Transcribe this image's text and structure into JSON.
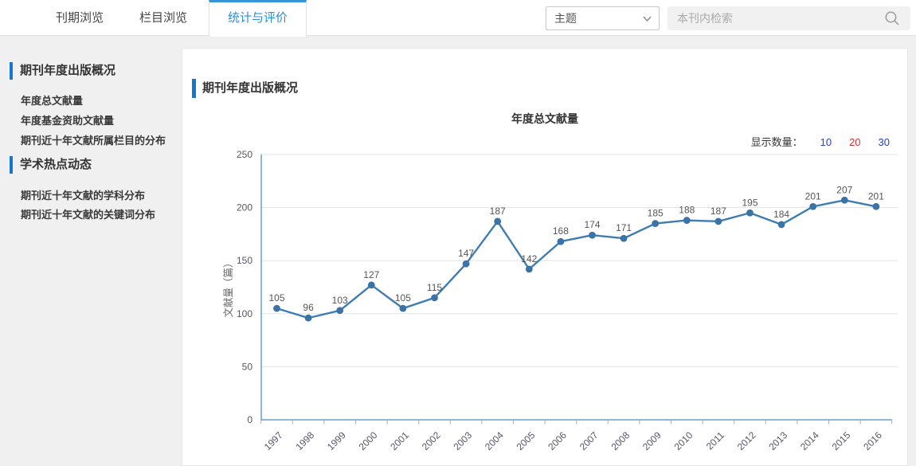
{
  "topbar": {
    "tabs": [
      {
        "label": "刊期浏览",
        "active": false
      },
      {
        "label": "栏目浏览",
        "active": false
      },
      {
        "label": "统计与评价",
        "active": true
      }
    ],
    "search_select": {
      "value": "主题"
    },
    "search_input": {
      "placeholder": "本刊内检索"
    }
  },
  "sidebar": {
    "sections": [
      {
        "title": "期刊年度出版概况",
        "items": [
          "年度总文献量",
          "年度基金资助文献量",
          "期刊近十年文献所属栏目的分布"
        ]
      },
      {
        "title": "学术热点动态",
        "items": [
          "期刊近十年文献的学科分布",
          "期刊近十年文献的关键词分布"
        ]
      }
    ]
  },
  "main": {
    "section_title": "期刊年度出版概况",
    "display_count": {
      "label": "显示数量：",
      "options": [
        {
          "value": "10",
          "selected": false
        },
        {
          "value": "20",
          "selected": true
        },
        {
          "value": "30",
          "selected": false
        }
      ]
    }
  },
  "chart_data": {
    "type": "line",
    "title": "年度总文献量",
    "ylabel": "文献量（篇）",
    "x": [
      "1997",
      "1998",
      "1999",
      "2000",
      "2001",
      "2002",
      "2003",
      "2004",
      "2005",
      "2006",
      "2007",
      "2008",
      "2009",
      "2010",
      "2011",
      "2012",
      "2013",
      "2014",
      "2015",
      "2016"
    ],
    "values": [
      105,
      96,
      103,
      127,
      105,
      115,
      147,
      187,
      142,
      168,
      174,
      171,
      185,
      188,
      187,
      195,
      184,
      201,
      207,
      201
    ],
    "ylim": [
      0,
      250
    ],
    "yticks": [
      0,
      50,
      100,
      150,
      200,
      250
    ],
    "grid": true,
    "x_label_rotation": -45,
    "legend": "none"
  },
  "colors": {
    "accent_blue": "#1677cc",
    "tab_active_border": "#3595d6",
    "tab_active_text": "#2b8fd0",
    "link_blue": "#2543c4",
    "link_red": "#d93030",
    "axis_blue": "#4d8fc0",
    "line_blue": "#3f7cb2",
    "marker_blue": "#3a73a6",
    "grid_gray": "#e3e3e3",
    "label_gray": "#555555"
  }
}
